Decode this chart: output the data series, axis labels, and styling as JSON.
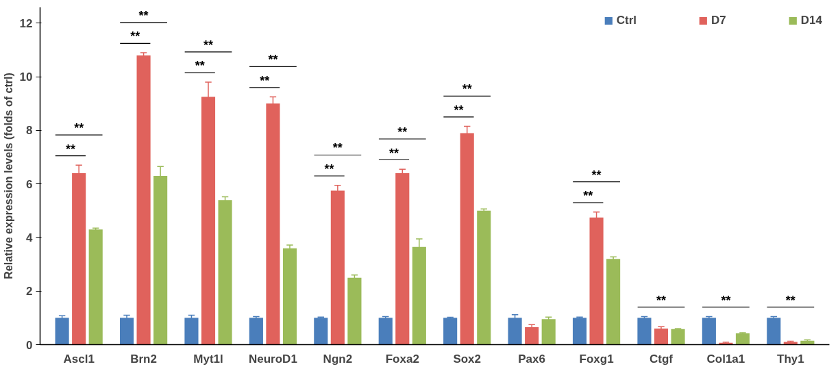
{
  "chart_data": {
    "type": "bar",
    "ylabel": "Relative expression levels (folds of ctrl)",
    "categories": [
      "Ascl1",
      "Brn2",
      "Myt1l",
      "NeuroD1",
      "Ngn2",
      "Foxa2",
      "Sox2",
      "Pax6",
      "Foxg1",
      "Ctgf",
      "Col1a1",
      "Thy1"
    ],
    "series": [
      {
        "name": "Ctrl",
        "color": "#4a7ebb",
        "values": [
          1.0,
          1.0,
          1.0,
          1.0,
          1.0,
          1.0,
          1.0,
          1.0,
          1.0,
          1.0,
          1.0,
          1.0
        ],
        "errors": [
          0.08,
          0.1,
          0.1,
          0.05,
          0.03,
          0.05,
          0.02,
          0.12,
          0.03,
          0.05,
          0.05,
          0.05
        ]
      },
      {
        "name": "D7",
        "color": "#e0625c",
        "values": [
          6.4,
          10.8,
          9.25,
          9.0,
          5.75,
          6.4,
          7.9,
          0.65,
          4.75,
          0.6,
          0.07,
          0.1
        ],
        "errors": [
          0.3,
          0.1,
          0.55,
          0.25,
          0.2,
          0.15,
          0.25,
          0.1,
          0.2,
          0.07,
          0.02,
          0.03
        ]
      },
      {
        "name": "D14",
        "color": "#9bbb59",
        "values": [
          4.3,
          6.3,
          5.4,
          3.6,
          2.5,
          3.65,
          5.0,
          0.95,
          3.2,
          0.58,
          0.42,
          0.15
        ],
        "errors": [
          0.05,
          0.35,
          0.12,
          0.12,
          0.1,
          0.3,
          0.07,
          0.08,
          0.08,
          0.02,
          0.03,
          0.03
        ]
      }
    ],
    "ylim": [
      0,
      12.6
    ],
    "yticks": [
      0,
      2,
      4,
      6,
      8,
      10,
      12
    ],
    "grid": false,
    "legend": "top right",
    "annotations": [
      "**",
      "**",
      "**",
      "**",
      "**",
      "**",
      "**",
      "**",
      "**",
      "**",
      "**",
      "**",
      "**",
      "**",
      "**",
      "**",
      "**",
      "**",
      "**"
    ]
  }
}
